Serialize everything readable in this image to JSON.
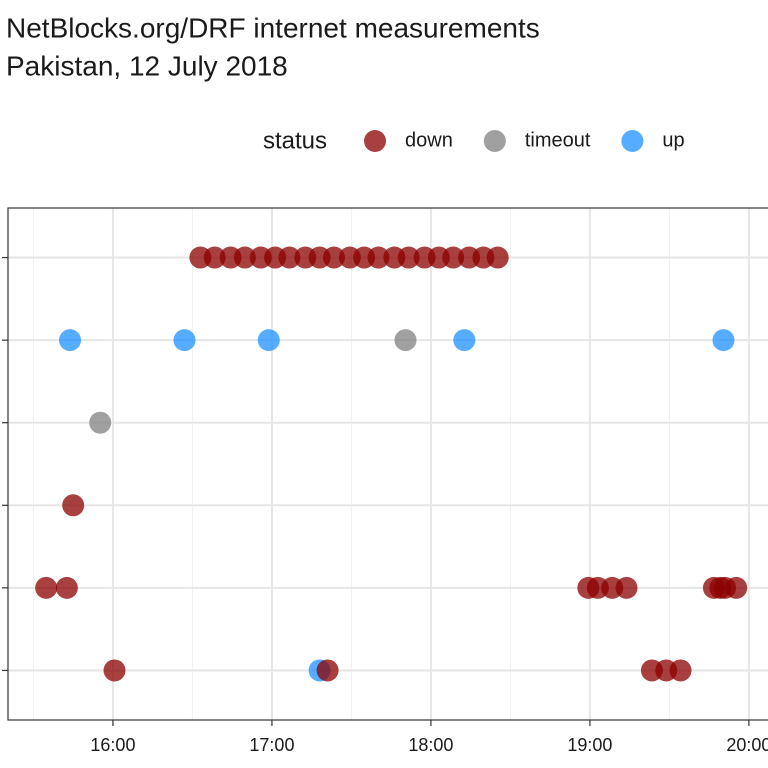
{
  "chart_data": {
    "type": "scatter",
    "title": "NetBlocks.org/DRF internet measurements",
    "subtitle": "Pakistan, 12 July 2018",
    "legend_title": "status",
    "legend": "top",
    "grid": true,
    "xlim": [
      15.34,
      20.12
    ],
    "xticks": [
      {
        "value": 16,
        "label": "16:00"
      },
      {
        "value": 17,
        "label": "17:00"
      },
      {
        "value": 18,
        "label": "18:00"
      },
      {
        "value": 19,
        "label": "19:00"
      },
      {
        "value": 20,
        "label": "20:00"
      }
    ],
    "x_minor_ticks": [
      15.5,
      16.5,
      17.5,
      18.5,
      19.5
    ],
    "ylim": [
      0.4,
      6.6
    ],
    "yticks": [
      1,
      2,
      3,
      4,
      5,
      6
    ],
    "y_categories": [
      null,
      null,
      null,
      null,
      null,
      null
    ],
    "series": [
      {
        "name": "down",
        "color": "#8b0000",
        "x": [
          16.55,
          16.64,
          16.74,
          16.83,
          16.93,
          17.02,
          17.11,
          17.21,
          17.3,
          17.39,
          17.49,
          17.58,
          17.67,
          17.77,
          17.86,
          17.96,
          18.05,
          18.14,
          18.24,
          18.33,
          18.42,
          15.75,
          15.58,
          15.71,
          18.99,
          19.05,
          19.14,
          19.23,
          19.78,
          19.82,
          19.85,
          19.92,
          16.01,
          17.35,
          19.39,
          19.48,
          19.57
        ],
        "y": [
          6,
          6,
          6,
          6,
          6,
          6,
          6,
          6,
          6,
          6,
          6,
          6,
          6,
          6,
          6,
          6,
          6,
          6,
          6,
          6,
          6,
          3,
          2,
          2,
          2,
          2,
          2,
          2,
          2,
          2,
          2,
          2,
          1,
          1,
          1,
          1,
          1
        ]
      },
      {
        "name": "timeout",
        "color": "#808080",
        "x": [
          17.84,
          15.92
        ],
        "y": [
          5,
          4
        ]
      },
      {
        "name": "up",
        "color": "#1e90ff",
        "x": [
          15.73,
          16.45,
          16.98,
          18.21,
          19.84,
          17.3
        ],
        "y": [
          5,
          5,
          5,
          5,
          5,
          1
        ]
      }
    ]
  }
}
